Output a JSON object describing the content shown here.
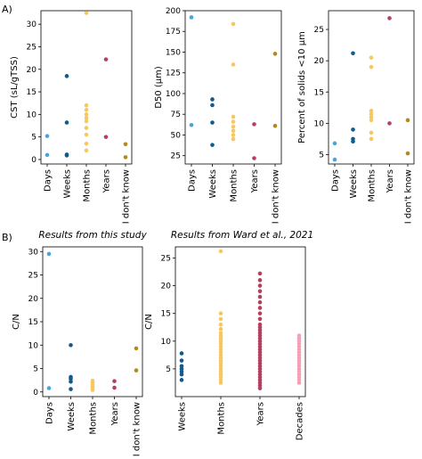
{
  "panel_labels": {
    "a": "A)",
    "b": "B)"
  },
  "colors": {
    "Days": "#4ba3d9",
    "Weeks": "#0f5a8f",
    "Months": "#f6c85f",
    "Years": "#b5405e",
    "I don't know": "#b08a1a",
    "Decades": "#f4a0b5"
  },
  "chart_data": [
    {
      "type": "scatter",
      "title": "",
      "xlabel": "",
      "ylabel": "CST (sL/gTSS)",
      "categories": [
        "Days",
        "Weeks",
        "Months",
        "Years",
        "I don't know"
      ],
      "ylim": [
        -1,
        33
      ],
      "yticks": [
        0,
        5,
        10,
        15,
        20,
        25,
        30
      ],
      "grid": false,
      "series": [
        {
          "values": [
            [
              0,
              5.2
            ],
            [
              0,
              1.0
            ],
            [
              1,
              18.5
            ],
            [
              1,
              8.2
            ],
            [
              1,
              1.1
            ],
            [
              1,
              0.9
            ],
            [
              2,
              32.5
            ],
            [
              2,
              12.0
            ],
            [
              2,
              11.0
            ],
            [
              2,
              10.0
            ],
            [
              2,
              9.2
            ],
            [
              2,
              8.5
            ],
            [
              2,
              7.0
            ],
            [
              2,
              5.5
            ],
            [
              2,
              3.5
            ],
            [
              2,
              2.0
            ],
            [
              3,
              22.2
            ],
            [
              3,
              5.0
            ],
            [
              4,
              3.4
            ],
            [
              4,
              0.5
            ]
          ]
        }
      ]
    },
    {
      "type": "scatter",
      "title": "",
      "xlabel": "",
      "ylabel": "D50 (μm)",
      "categories": [
        "Days",
        "Weeks",
        "Months",
        "Years",
        "I don't know"
      ],
      "ylim": [
        15,
        200
      ],
      "yticks": [
        25,
        50,
        75,
        100,
        125,
        150,
        175,
        200
      ],
      "grid": false,
      "series": [
        {
          "values": [
            [
              0,
              192
            ],
            [
              0,
              62
            ],
            [
              1,
              93
            ],
            [
              1,
              86
            ],
            [
              1,
              65
            ],
            [
              1,
              38
            ],
            [
              2,
              184
            ],
            [
              2,
              135
            ],
            [
              2,
              72
            ],
            [
              2,
              66
            ],
            [
              2,
              60
            ],
            [
              2,
              55
            ],
            [
              2,
              50
            ],
            [
              2,
              45
            ],
            [
              3,
              63
            ],
            [
              3,
              22
            ],
            [
              4,
              148
            ],
            [
              4,
              61
            ]
          ]
        }
      ]
    },
    {
      "type": "scatter",
      "title": "",
      "xlabel": "",
      "ylabel": "Percent of solids <10 μm",
      "categories": [
        "Days",
        "Weeks",
        "Months",
        "Years",
        "I don't know"
      ],
      "ylim": [
        3.5,
        28
      ],
      "yticks": [
        5,
        10,
        15,
        20,
        25
      ],
      "grid": false,
      "series": [
        {
          "values": [
            [
              0,
              6.8
            ],
            [
              0,
              4.2
            ],
            [
              1,
              21.2
            ],
            [
              1,
              9.0
            ],
            [
              1,
              7.5
            ],
            [
              1,
              7.1
            ],
            [
              2,
              20.5
            ],
            [
              2,
              19.0
            ],
            [
              2,
              12.0
            ],
            [
              2,
              11.5
            ],
            [
              2,
              11.0
            ],
            [
              2,
              10.5
            ],
            [
              2,
              8.5
            ],
            [
              2,
              7.5
            ],
            [
              3,
              26.8
            ],
            [
              3,
              10.0
            ],
            [
              4,
              10.5
            ],
            [
              4,
              5.2
            ]
          ]
        }
      ]
    },
    {
      "type": "scatter",
      "title": "Results from this study",
      "xlabel": "",
      "ylabel": "C/N",
      "categories": [
        "Days",
        "Weeks",
        "Months",
        "Years",
        "I don't know"
      ],
      "ylim": [
        -1,
        31
      ],
      "yticks": [
        0,
        5,
        10,
        15,
        20,
        25,
        30
      ],
      "grid": false,
      "series": [
        {
          "values": [
            [
              0,
              29.5
            ],
            [
              0,
              0.8
            ],
            [
              1,
              10.0
            ],
            [
              1,
              3.2
            ],
            [
              1,
              2.8
            ],
            [
              1,
              2.2
            ],
            [
              1,
              0.6
            ],
            [
              2,
              2.4
            ],
            [
              2,
              2.0
            ],
            [
              2,
              1.5
            ],
            [
              2,
              1.1
            ],
            [
              2,
              0.7
            ],
            [
              2,
              0.4
            ],
            [
              3,
              2.3
            ],
            [
              3,
              0.9
            ],
            [
              4,
              9.3
            ],
            [
              4,
              4.6
            ]
          ]
        }
      ]
    },
    {
      "type": "scatter",
      "title": "Results from Ward et al., 2021",
      "xlabel": "",
      "ylabel": "C/N",
      "categories": [
        "Weeks",
        "Months",
        "Years",
        "Decades"
      ],
      "ylim": [
        0,
        27
      ],
      "yticks": [
        5,
        10,
        15,
        20,
        25
      ],
      "grid": false,
      "series": [
        {
          "values": [
            [
              0,
              7.8
            ],
            [
              0,
              6.5
            ],
            [
              0,
              5.5
            ],
            [
              0,
              5.0
            ],
            [
              0,
              4.5
            ],
            [
              0,
              4.0
            ],
            [
              0,
              3.0
            ],
            [
              1,
              26.2
            ],
            [
              1,
              15.0
            ],
            [
              1,
              14.0
            ],
            [
              1,
              13.0
            ],
            [
              1,
              12.2
            ],
            [
              1,
              11.5
            ],
            [
              1,
              11.0
            ],
            [
              1,
              10.5
            ],
            [
              1,
              10.0
            ],
            [
              1,
              9.5
            ],
            [
              1,
              9.0
            ],
            [
              1,
              8.5
            ],
            [
              1,
              8.0
            ],
            [
              1,
              7.5
            ],
            [
              1,
              7.0
            ],
            [
              1,
              6.5
            ],
            [
              1,
              6.0
            ],
            [
              1,
              5.5
            ],
            [
              1,
              5.0
            ],
            [
              1,
              4.5
            ],
            [
              1,
              4.0
            ],
            [
              1,
              3.5
            ],
            [
              1,
              3.0
            ],
            [
              1,
              2.5
            ],
            [
              2,
              22.2
            ],
            [
              2,
              21.0
            ],
            [
              2,
              20.0
            ],
            [
              2,
              19.0
            ],
            [
              2,
              18.0
            ],
            [
              2,
              17.0
            ],
            [
              2,
              16.0
            ],
            [
              2,
              15.0
            ],
            [
              2,
              14.0
            ],
            [
              2,
              13.0
            ],
            [
              2,
              12.5
            ],
            [
              2,
              12.0
            ],
            [
              2,
              11.5
            ],
            [
              2,
              11.0
            ],
            [
              2,
              10.5
            ],
            [
              2,
              10.0
            ],
            [
              2,
              9.5
            ],
            [
              2,
              9.0
            ],
            [
              2,
              8.5
            ],
            [
              2,
              8.0
            ],
            [
              2,
              7.5
            ],
            [
              2,
              7.0
            ],
            [
              2,
              6.5
            ],
            [
              2,
              6.0
            ],
            [
              2,
              5.5
            ],
            [
              2,
              5.0
            ],
            [
              2,
              4.5
            ],
            [
              2,
              4.0
            ],
            [
              2,
              3.5
            ],
            [
              2,
              3.0
            ],
            [
              2,
              2.5
            ],
            [
              2,
              2.0
            ],
            [
              2,
              1.5
            ],
            [
              3,
              11.0
            ],
            [
              3,
              10.5
            ],
            [
              3,
              10.0
            ],
            [
              3,
              9.5
            ],
            [
              3,
              9.0
            ],
            [
              3,
              8.5
            ],
            [
              3,
              8.0
            ],
            [
              3,
              7.5
            ],
            [
              3,
              7.0
            ],
            [
              3,
              6.5
            ],
            [
              3,
              6.0
            ],
            [
              3,
              5.5
            ],
            [
              3,
              5.0
            ],
            [
              3,
              4.5
            ],
            [
              3,
              4.0
            ],
            [
              3,
              3.5
            ],
            [
              3,
              3.0
            ],
            [
              3,
              2.5
            ]
          ]
        }
      ]
    }
  ]
}
